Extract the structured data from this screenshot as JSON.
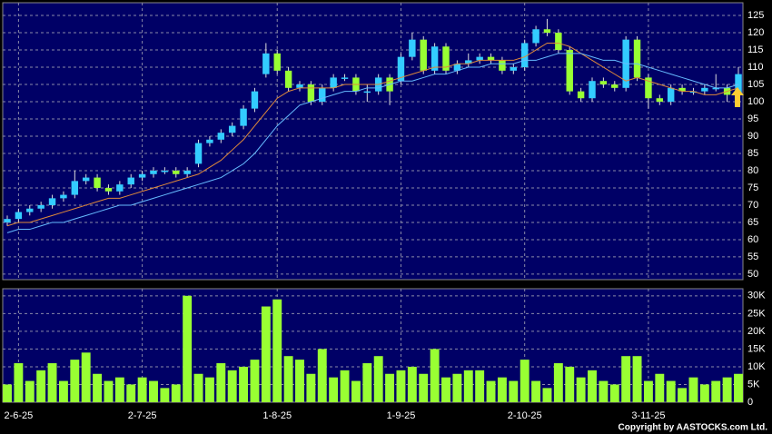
{
  "chart_data": {
    "type": "candlestick",
    "categories": [
      null,
      "2-6-25",
      null,
      null,
      null,
      null,
      null,
      null,
      null,
      null,
      null,
      null,
      "2-7-25",
      null,
      null,
      null,
      null,
      null,
      null,
      null,
      null,
      null,
      null,
      null,
      "1-8-25",
      null,
      null,
      null,
      null,
      null,
      null,
      null,
      null,
      null,
      null,
      "1-9-25",
      null,
      null,
      null,
      null,
      null,
      null,
      null,
      null,
      null,
      null,
      "2-10-25",
      null,
      null,
      null,
      null,
      null,
      null,
      null,
      null,
      null,
      null,
      "3-11-25",
      null,
      null,
      null,
      null,
      null,
      null,
      null,
      null
    ],
    "open": [
      65,
      66,
      68,
      69,
      70,
      72,
      73,
      77,
      78,
      75,
      74,
      76,
      78,
      79,
      80,
      80,
      79,
      82,
      88,
      89,
      91,
      93,
      98,
      108,
      114,
      109,
      104,
      105,
      100,
      104,
      107,
      107,
      103,
      103,
      107,
      106,
      113,
      118,
      109,
      116,
      109,
      111,
      112,
      113,
      112,
      109,
      110,
      117,
      121,
      120,
      115,
      103,
      101,
      106,
      105,
      104,
      118,
      107,
      101,
      100,
      104,
      103,
      103,
      104,
      104,
      102
    ],
    "high": [
      67,
      69,
      70,
      71,
      73,
      74,
      80,
      79,
      79,
      76,
      77,
      79,
      80,
      81,
      81,
      81,
      81,
      89,
      90,
      92,
      94,
      99,
      104,
      117,
      115,
      110,
      106,
      106,
      105,
      108,
      108,
      108,
      105,
      108,
      108,
      114,
      120,
      119,
      117,
      117,
      112,
      114,
      114,
      114,
      113,
      111,
      118,
      122,
      124,
      121,
      116,
      104,
      107,
      107,
      106,
      119,
      119,
      108,
      102,
      105,
      105,
      104,
      105,
      108,
      105,
      110
    ],
    "low": [
      64,
      65,
      67,
      68,
      69,
      71,
      72,
      76,
      74,
      73,
      73,
      75,
      77,
      78,
      79,
      78,
      78,
      81,
      87,
      88,
      90,
      92,
      97,
      107,
      108,
      103,
      103,
      99,
      99,
      103,
      106,
      102,
      100,
      102,
      99,
      105,
      112,
      108,
      108,
      108,
      108,
      110,
      111,
      111,
      108,
      108,
      109,
      116,
      119,
      114,
      102,
      100,
      100,
      104,
      103,
      103,
      106,
      98,
      99,
      99,
      102,
      102,
      102,
      103,
      100,
      101
    ],
    "close": [
      66,
      68,
      69,
      70,
      72,
      73,
      77,
      78,
      75,
      74,
      76,
      78,
      79,
      80,
      80,
      79,
      80,
      88,
      89,
      91,
      93,
      98,
      103,
      114,
      109,
      104,
      105,
      100,
      104,
      107,
      107,
      103,
      103,
      107,
      103,
      113,
      118,
      109,
      116,
      109,
      111,
      112,
      113,
      112,
      109,
      110,
      117,
      121,
      120,
      115,
      103,
      101,
      106,
      105,
      104,
      118,
      107,
      101,
      100,
      104,
      103,
      103,
      104,
      104,
      102,
      108
    ],
    "up_color": "#33ccff",
    "down_color": "#99ff33",
    "ma": [
      {
        "color": "#e08a3a",
        "values": [
          64,
          65,
          65,
          66,
          67,
          68,
          69,
          70,
          71,
          72,
          72,
          73,
          74,
          75,
          76,
          77,
          78,
          79,
          81,
          83,
          86,
          89,
          93,
          97,
          101,
          103,
          104,
          104,
          104,
          104,
          105,
          105,
          105,
          105,
          106,
          107,
          108,
          109,
          110,
          110,
          111,
          111,
          112,
          112,
          112,
          112,
          113,
          115,
          117,
          117,
          116,
          114,
          112,
          110,
          108,
          106,
          107,
          106,
          105,
          104,
          103,
          103,
          102,
          102,
          103,
          104
        ]
      },
      {
        "color": "#66bbff",
        "values": [
          62,
          63,
          63,
          64,
          65,
          65,
          66,
          67,
          68,
          69,
          70,
          70,
          71,
          72,
          73,
          74,
          75,
          76,
          77,
          78,
          80,
          82,
          85,
          89,
          93,
          96,
          99,
          100,
          101,
          102,
          103,
          103,
          104,
          104,
          105,
          106,
          106,
          107,
          108,
          108,
          109,
          110,
          110,
          111,
          111,
          111,
          112,
          112,
          113,
          114,
          114,
          114,
          113,
          112,
          112,
          111,
          111,
          110,
          109,
          108,
          107,
          106,
          105,
          104,
          104,
          105
        ]
      }
    ],
    "ylim": [
      48.4,
      128.7
    ],
    "yticks": [
      50,
      55,
      60,
      65,
      70,
      75,
      80,
      85,
      90,
      95,
      100,
      105,
      110,
      115,
      120,
      125
    ],
    "grid": true,
    "volume": {
      "color": "#99ff33",
      "values": [
        5000,
        11000,
        6000,
        9000,
        11000,
        6000,
        12000,
        14000,
        8000,
        6000,
        7000,
        5000,
        7000,
        6000,
        4000,
        5000,
        30000,
        8000,
        7000,
        11000,
        9000,
        10000,
        12000,
        27000,
        29000,
        13000,
        12000,
        8000,
        15000,
        7000,
        9000,
        6000,
        11000,
        13000,
        8000,
        9000,
        10000,
        8000,
        15000,
        7000,
        8000,
        9000,
        9000,
        6000,
        7000,
        6000,
        12000,
        6000,
        4000,
        11000,
        10000,
        7000,
        9000,
        6000,
        5000,
        13000,
        13000,
        6000,
        8000,
        6000,
        4000,
        7000,
        5000,
        6000,
        7000,
        8000
      ],
      "ylim": [
        0,
        32000
      ],
      "yticks": [
        0,
        {
          "value": 5000,
          "label": "5K"
        },
        {
          "value": 10000,
          "label": "10K"
        },
        {
          "value": 15000,
          "label": "15K"
        },
        {
          "value": 20000,
          "label": "20K"
        },
        {
          "value": 25000,
          "label": "25K"
        },
        {
          "value": 30000,
          "label": "30K"
        }
      ]
    },
    "copyright": "Copyright by AASTOCKS.com Ltd."
  }
}
